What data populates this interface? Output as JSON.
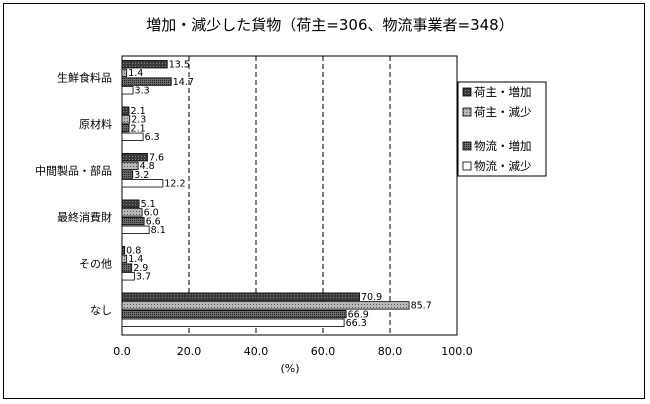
{
  "chart_data": {
    "type": "bar",
    "orientation": "horizontal",
    "title": "増加・減少した貨物（荷主=306、物流事業者=348）",
    "xlabel": "(%)",
    "xlim": [
      0,
      100
    ],
    "xticks": [
      "0.0",
      "20.0",
      "40.0",
      "60.0",
      "80.0",
      "100.0"
    ],
    "grid": "vertical dashed",
    "legend_position": "right",
    "categories": [
      "生鮮食料品",
      "原材料",
      "中間製品・部品",
      "最終消費財",
      "その他",
      "なし"
    ],
    "series": [
      {
        "name": "荷主・増加",
        "color": "#2e2e2e",
        "pattern": "crosshatch-dark",
        "values": [
          13.5,
          2.1,
          7.6,
          5.1,
          0.8,
          70.9
        ]
      },
      {
        "name": "荷主・減少",
        "color": "#9a9a9a",
        "pattern": "dotted-gray",
        "values": [
          1.4,
          2.3,
          4.8,
          6.0,
          1.4,
          85.7
        ]
      },
      {
        "name": "物流・増加",
        "color": "#555555",
        "pattern": "dotted-dark",
        "values": [
          14.7,
          2.1,
          3.2,
          6.6,
          2.9,
          66.9
        ]
      },
      {
        "name": "物流・減少",
        "color": "#ffffff",
        "pattern": "white",
        "values": [
          3.3,
          6.3,
          12.2,
          8.1,
          3.7,
          66.3
        ]
      }
    ]
  }
}
